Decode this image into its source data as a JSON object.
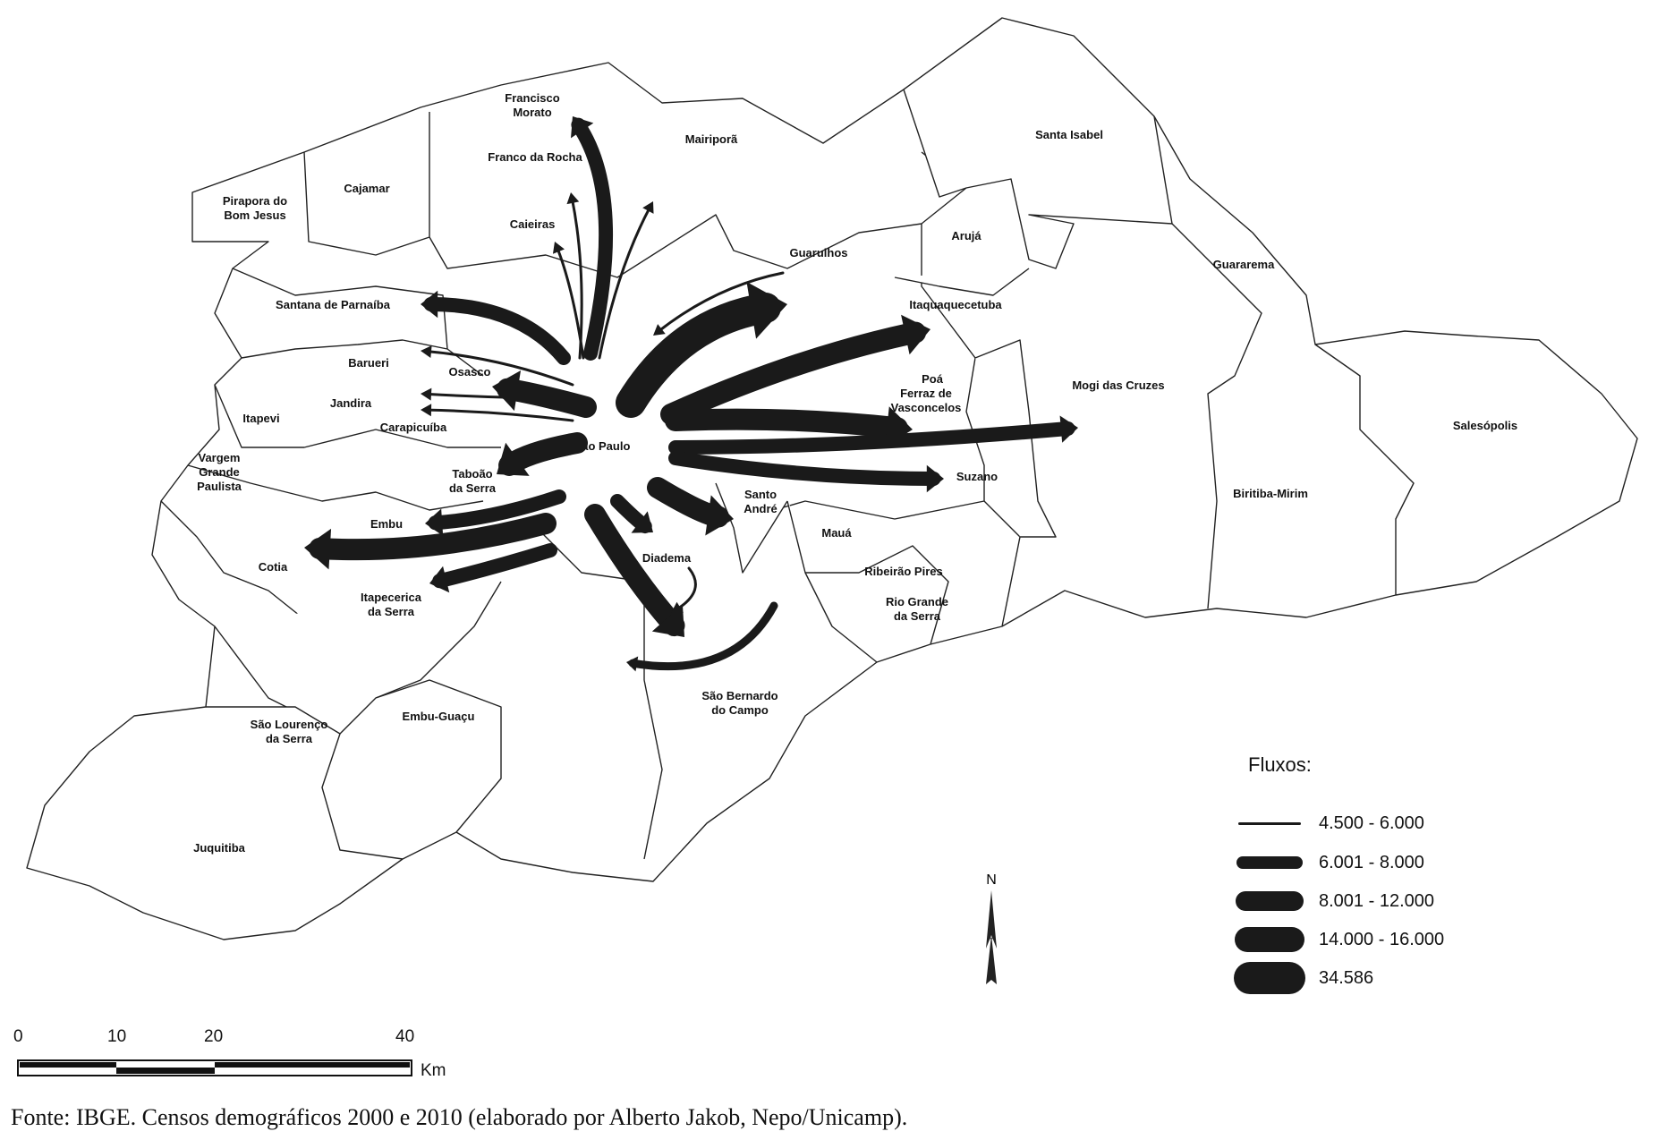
{
  "map": {
    "center_label": "São Paulo",
    "municipalities": [
      {
        "id": "francisco-morato",
        "lines": [
          "Francisco",
          "Morato"
        ]
      },
      {
        "id": "mairipora",
        "lines": [
          "Mairiporã"
        ]
      },
      {
        "id": "santa-isabel",
        "lines": [
          "Santa Isabel"
        ]
      },
      {
        "id": "franco-da-rocha",
        "lines": [
          "Franco da Rocha"
        ]
      },
      {
        "id": "cajamar",
        "lines": [
          "Cajamar"
        ]
      },
      {
        "id": "pirapora",
        "lines": [
          "Pirapora do",
          "Bom Jesus"
        ]
      },
      {
        "id": "caieiras",
        "lines": [
          "Caieiras"
        ]
      },
      {
        "id": "guarulhos",
        "lines": [
          "Guarulhos"
        ]
      },
      {
        "id": "aruja",
        "lines": [
          "Arujá"
        ]
      },
      {
        "id": "guararema",
        "lines": [
          "Guararema"
        ]
      },
      {
        "id": "santana",
        "lines": [
          "Santana de Parnaíba"
        ]
      },
      {
        "id": "itaquaquecetuba",
        "lines": [
          "Itaquaquecetuba"
        ]
      },
      {
        "id": "barueri",
        "lines": [
          "Barueri"
        ]
      },
      {
        "id": "osasco",
        "lines": [
          "Osasco"
        ]
      },
      {
        "id": "poa",
        "lines": [
          "Poá"
        ]
      },
      {
        "id": "mogi",
        "lines": [
          "Mogi das Cruzes"
        ]
      },
      {
        "id": "jandira",
        "lines": [
          "Jandira"
        ]
      },
      {
        "id": "ferraz",
        "lines": [
          "Ferraz de",
          "Vasconcelos"
        ]
      },
      {
        "id": "itapevi",
        "lines": [
          "Itapevi"
        ]
      },
      {
        "id": "carapicuiba",
        "lines": [
          "Carapicuíba"
        ]
      },
      {
        "id": "salesopolis",
        "lines": [
          "Salesópolis"
        ]
      },
      {
        "id": "taboao",
        "lines": [
          "Taboão",
          "da Serra"
        ]
      },
      {
        "id": "vargem",
        "lines": [
          "Vargem",
          "Grande",
          "Paulista"
        ]
      },
      {
        "id": "suzano",
        "lines": [
          "Suzano"
        ]
      },
      {
        "id": "biritiba",
        "lines": [
          "Biritiba-Mirim"
        ]
      },
      {
        "id": "santo-andre",
        "lines": [
          "Santo",
          "André"
        ]
      },
      {
        "id": "embu",
        "lines": [
          "Embu"
        ]
      },
      {
        "id": "maua",
        "lines": [
          "Mauá"
        ]
      },
      {
        "id": "diadema",
        "lines": [
          "Diadema"
        ]
      },
      {
        "id": "cotia",
        "lines": [
          "Cotia"
        ]
      },
      {
        "id": "ribeirao-pires",
        "lines": [
          "Ribeirão Pires"
        ]
      },
      {
        "id": "rio-grande",
        "lines": [
          "Rio Grande",
          "da Serra"
        ]
      },
      {
        "id": "itapecerica",
        "lines": [
          "Itapecerica",
          "da Serra"
        ]
      },
      {
        "id": "sbc",
        "lines": [
          "São Bernardo",
          "do Campo"
        ]
      },
      {
        "id": "embu-guacu",
        "lines": [
          "Embu-Guaçu"
        ]
      },
      {
        "id": "sao-lourenco",
        "lines": [
          "São Lourenço",
          "da Serra"
        ]
      },
      {
        "id": "juquitiba",
        "lines": [
          "Juquitiba"
        ]
      }
    ]
  },
  "flows": [
    {
      "to": "francisco-morato",
      "cls": 3
    },
    {
      "to": "franco-da-rocha",
      "cls": 1
    },
    {
      "to": "caieiras",
      "cls": 1
    },
    {
      "to": "mairipora",
      "cls": 1
    },
    {
      "to": "sao-paulo-from-guarulhos",
      "cls": 1
    },
    {
      "to": "santana",
      "cls": 3
    },
    {
      "to": "barueri",
      "cls": 1
    },
    {
      "to": "osasco",
      "cls": 4
    },
    {
      "to": "jandira",
      "cls": 1
    },
    {
      "to": "carapicuiba",
      "cls": 1
    },
    {
      "to": "taboao",
      "cls": 4
    },
    {
      "to": "embu",
      "cls": 3
    },
    {
      "to": "cotia",
      "cls": 4
    },
    {
      "to": "itapecerica",
      "cls": 3
    },
    {
      "to": "guarulhos",
      "cls": 5
    },
    {
      "to": "itaquaquecetuba",
      "cls": 4
    },
    {
      "to": "ferraz",
      "cls": 4
    },
    {
      "to": "mogi",
      "cls": 3
    },
    {
      "to": "suzano",
      "cls": 3
    },
    {
      "to": "santo-andre",
      "cls": 4
    },
    {
      "to": "diadema",
      "cls": 3
    },
    {
      "to": "sbc",
      "cls": 4
    },
    {
      "to": "sbc-return",
      "cls": 1
    },
    {
      "to": "sbc-arc",
      "cls": 2
    }
  ],
  "legend": {
    "title": "Fluxos:",
    "items": [
      {
        "label": "4.500 - 6.000",
        "cls": 1
      },
      {
        "label": "6.001 - 8.000",
        "cls": 2
      },
      {
        "label": "8.001 - 12.000",
        "cls": 3
      },
      {
        "label": "14.000 - 16.000",
        "cls": 4
      },
      {
        "label": "34.586",
        "cls": 5
      }
    ]
  },
  "north": "N",
  "scale": {
    "ticks": [
      "0",
      "10",
      "20",
      "40"
    ],
    "unit": "Km"
  },
  "source": "Fonte: IBGE. Censos demográficos 2000 e 2010 (elaborado por Alberto Jakob, Nepo/Unicamp)."
}
